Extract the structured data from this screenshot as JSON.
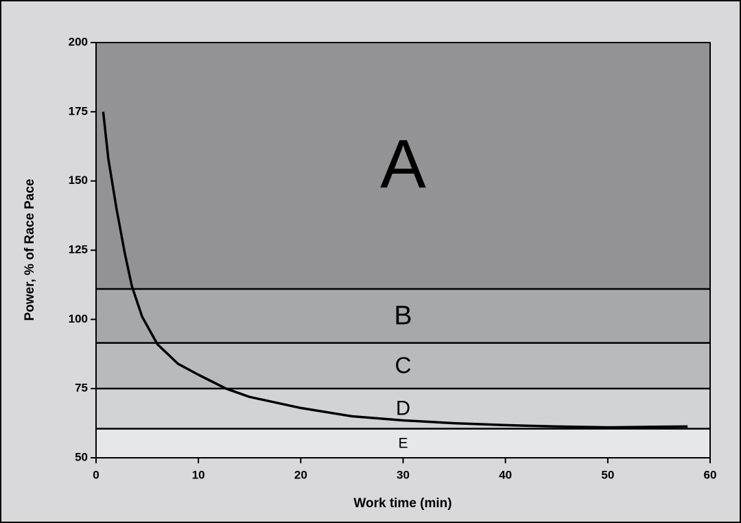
{
  "chart_data": {
    "type": "line",
    "xlabel": "Work time (min)",
    "ylabel": "Power, % of Race Pace",
    "x": [
      0.7,
      1.2,
      2,
      2.8,
      3.5,
      4.5,
      6,
      8,
      10,
      12.7,
      15,
      20,
      25,
      30,
      35,
      40,
      45,
      50,
      55,
      57.8
    ],
    "values": [
      175,
      158,
      140,
      124,
      112,
      101,
      91,
      84,
      80,
      75,
      72,
      68,
      65,
      63.5,
      62.5,
      61.8,
      61.3,
      61,
      61.2,
      61.3
    ],
    "color": "#000000",
    "bands": [
      {
        "label": "A",
        "from": 111,
        "to": 200,
        "color": "#939396"
      },
      {
        "label": "B",
        "from": 91.5,
        "to": 111,
        "color": "#a7a8ab"
      },
      {
        "label": "C",
        "from": 75,
        "to": 91.5,
        "color": "#b9babd"
      },
      {
        "label": "D",
        "from": 60.5,
        "to": 75,
        "color": "#d2d3d5"
      },
      {
        "label": "E",
        "from": 50,
        "to": 60.5,
        "color": "#e6e7e8"
      }
    ],
    "xlim": [
      0,
      60
    ],
    "xticks": [
      0,
      10,
      20,
      30,
      40,
      50,
      60
    ],
    "ylim": [
      50,
      200
    ],
    "yticks": [
      50,
      75,
      100,
      125,
      150,
      175,
      200
    ]
  }
}
